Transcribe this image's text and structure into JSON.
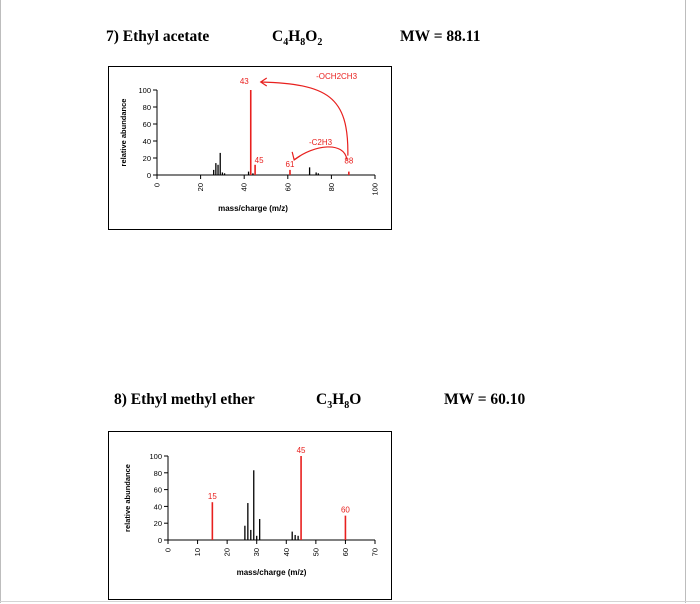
{
  "problems": [
    {
      "title": "7) Ethyl acetate",
      "formula_parts": [
        "C",
        "4",
        "H",
        "8",
        "O",
        "2"
      ],
      "mw": "MW = 88.11"
    },
    {
      "title": "8) Ethyl methyl ether",
      "formula_parts": [
        "C",
        "3",
        "H",
        "8",
        "O",
        ""
      ],
      "mw": "MW = 60.10"
    }
  ],
  "colors": {
    "spectrum_line": "#000000",
    "highlight": "#e8201e"
  },
  "chart_data": [
    {
      "type": "bar",
      "title": "",
      "xlabel": "mass/charge (m/z)",
      "ylabel": "relative abundance",
      "xlim": [
        0,
        100
      ],
      "ylim": [
        0,
        100
      ],
      "xticks": [
        "0",
        "20",
        "40",
        "60",
        "80",
        "100"
      ],
      "yticks": [
        "0",
        "20",
        "40",
        "60",
        "80",
        "100"
      ],
      "peaks": [
        {
          "x": 26,
          "y": 6
        },
        {
          "x": 27,
          "y": 14
        },
        {
          "x": 28,
          "y": 12
        },
        {
          "x": 29,
          "y": 26
        },
        {
          "x": 30,
          "y": 3
        },
        {
          "x": 31,
          "y": 2
        },
        {
          "x": 42,
          "y": 4
        },
        {
          "x": 44,
          "y": 2
        },
        {
          "x": 70,
          "y": 9
        },
        {
          "x": 73,
          "y": 3
        },
        {
          "x": 74,
          "y": 2
        }
      ],
      "highlight_peaks": [
        {
          "x": 43,
          "y": 100,
          "label": "43"
        },
        {
          "x": 45,
          "y": 12,
          "label": "45"
        },
        {
          "x": 61,
          "y": 6,
          "label": "61"
        },
        {
          "x": 88,
          "y": 4,
          "label": "88"
        }
      ],
      "annotations": [
        "-OCH2CH3",
        "-C2H3"
      ]
    },
    {
      "type": "bar",
      "title": "",
      "xlabel": "mass/charge (m/z)",
      "ylabel": "relative abundance",
      "xlim": [
        0,
        70
      ],
      "ylim": [
        0,
        100
      ],
      "xticks": [
        "0",
        "10",
        "20",
        "30",
        "40",
        "50",
        "60",
        "70"
      ],
      "yticks": [
        "0",
        "20",
        "40",
        "60",
        "80",
        "100"
      ],
      "peaks": [
        {
          "x": 26,
          "y": 17
        },
        {
          "x": 27,
          "y": 44
        },
        {
          "x": 28,
          "y": 12
        },
        {
          "x": 29,
          "y": 83
        },
        {
          "x": 30,
          "y": 5
        },
        {
          "x": 31,
          "y": 25
        },
        {
          "x": 42,
          "y": 10
        },
        {
          "x": 43,
          "y": 6
        },
        {
          "x": 44,
          "y": 5
        }
      ],
      "highlight_peaks": [
        {
          "x": 15,
          "y": 45,
          "label": "15"
        },
        {
          "x": 45,
          "y": 100,
          "label": "45"
        },
        {
          "x": 60,
          "y": 29,
          "label": "60"
        }
      ],
      "annotations": []
    }
  ]
}
